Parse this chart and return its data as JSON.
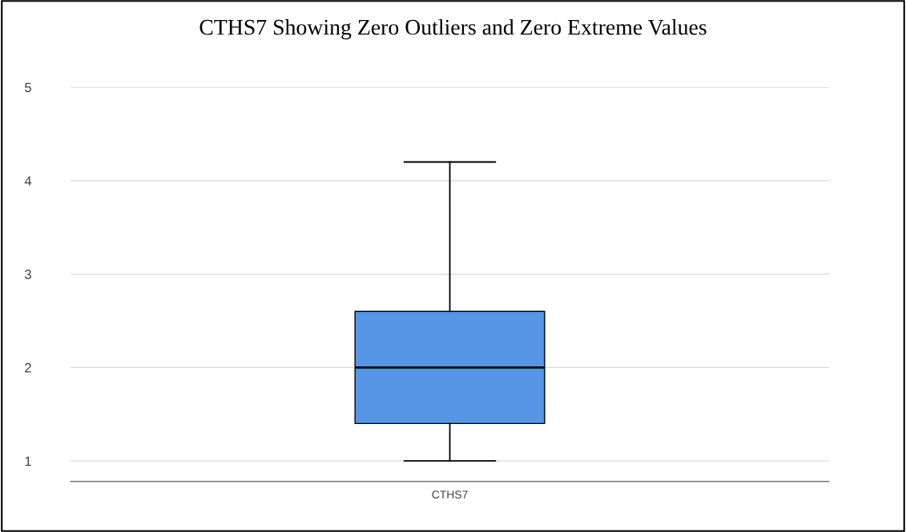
{
  "chart_data": {
    "type": "box",
    "title": "CTHS7 Showing Zero Outliers and Zero Extreme Values",
    "categories": [
      "CTHS7"
    ],
    "boxes": [
      {
        "low": 1.0,
        "q1": 1.4,
        "median": 2.0,
        "q3": 2.6,
        "high": 4.2
      }
    ],
    "color": "#5596e6",
    "ylim": [
      0.78,
      5
    ],
    "yticks": [
      1,
      2,
      3,
      4,
      5
    ],
    "grid": "y",
    "legend": false
  }
}
